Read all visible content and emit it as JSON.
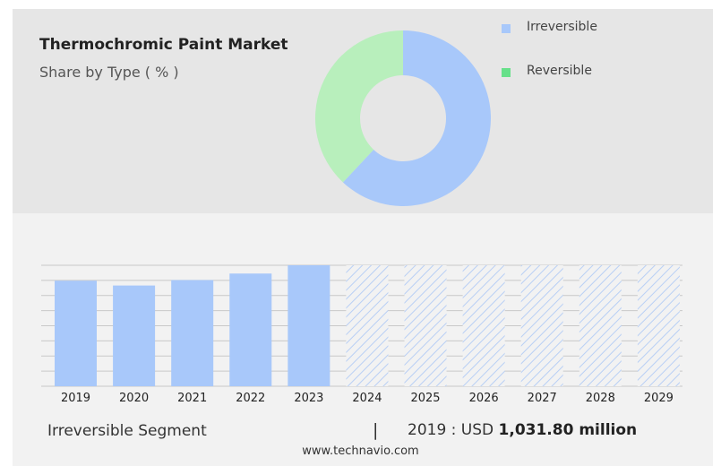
{
  "header": {
    "title": "Thermochromic Paint Market",
    "subtitle": "Share by Type ( % )"
  },
  "legend": [
    {
      "label": "Irreversible",
      "color": "#a8c8fa"
    },
    {
      "label": "Reversible",
      "color": "#67e08a"
    }
  ],
  "footer": {
    "segment": "Irreversible Segment",
    "separator": "|",
    "year_label": "2019 : USD ",
    "value": "1,031.80 million",
    "source": "www.technavio.com"
  },
  "chart_data": [
    {
      "type": "pie",
      "subtype": "donut",
      "title": "Thermochromic Paint Market",
      "subtitle": "Share by Type ( % )",
      "categories": [
        "Irreversible",
        "Reversible"
      ],
      "values": [
        62,
        38
      ],
      "colors": [
        "#a8c8fa",
        "#b8efbc"
      ],
      "legend_position": "top-right"
    },
    {
      "type": "bar",
      "categories": [
        "2019",
        "2020",
        "2021",
        "2022",
        "2023",
        "2024",
        "2025",
        "2026",
        "2027",
        "2028",
        "2029"
      ],
      "values": [
        1031.8,
        985,
        1038,
        1102,
        1183,
        1183,
        1183,
        1183,
        1183,
        1183,
        1183
      ],
      "forecast_from": "2024",
      "series_name": "Irreversible Segment",
      "unit": "USD million",
      "ylim": [
        0,
        1183
      ],
      "grid": true,
      "bar_color": "#a8c8fa",
      "forecast_color": "#b8cff5"
    }
  ]
}
